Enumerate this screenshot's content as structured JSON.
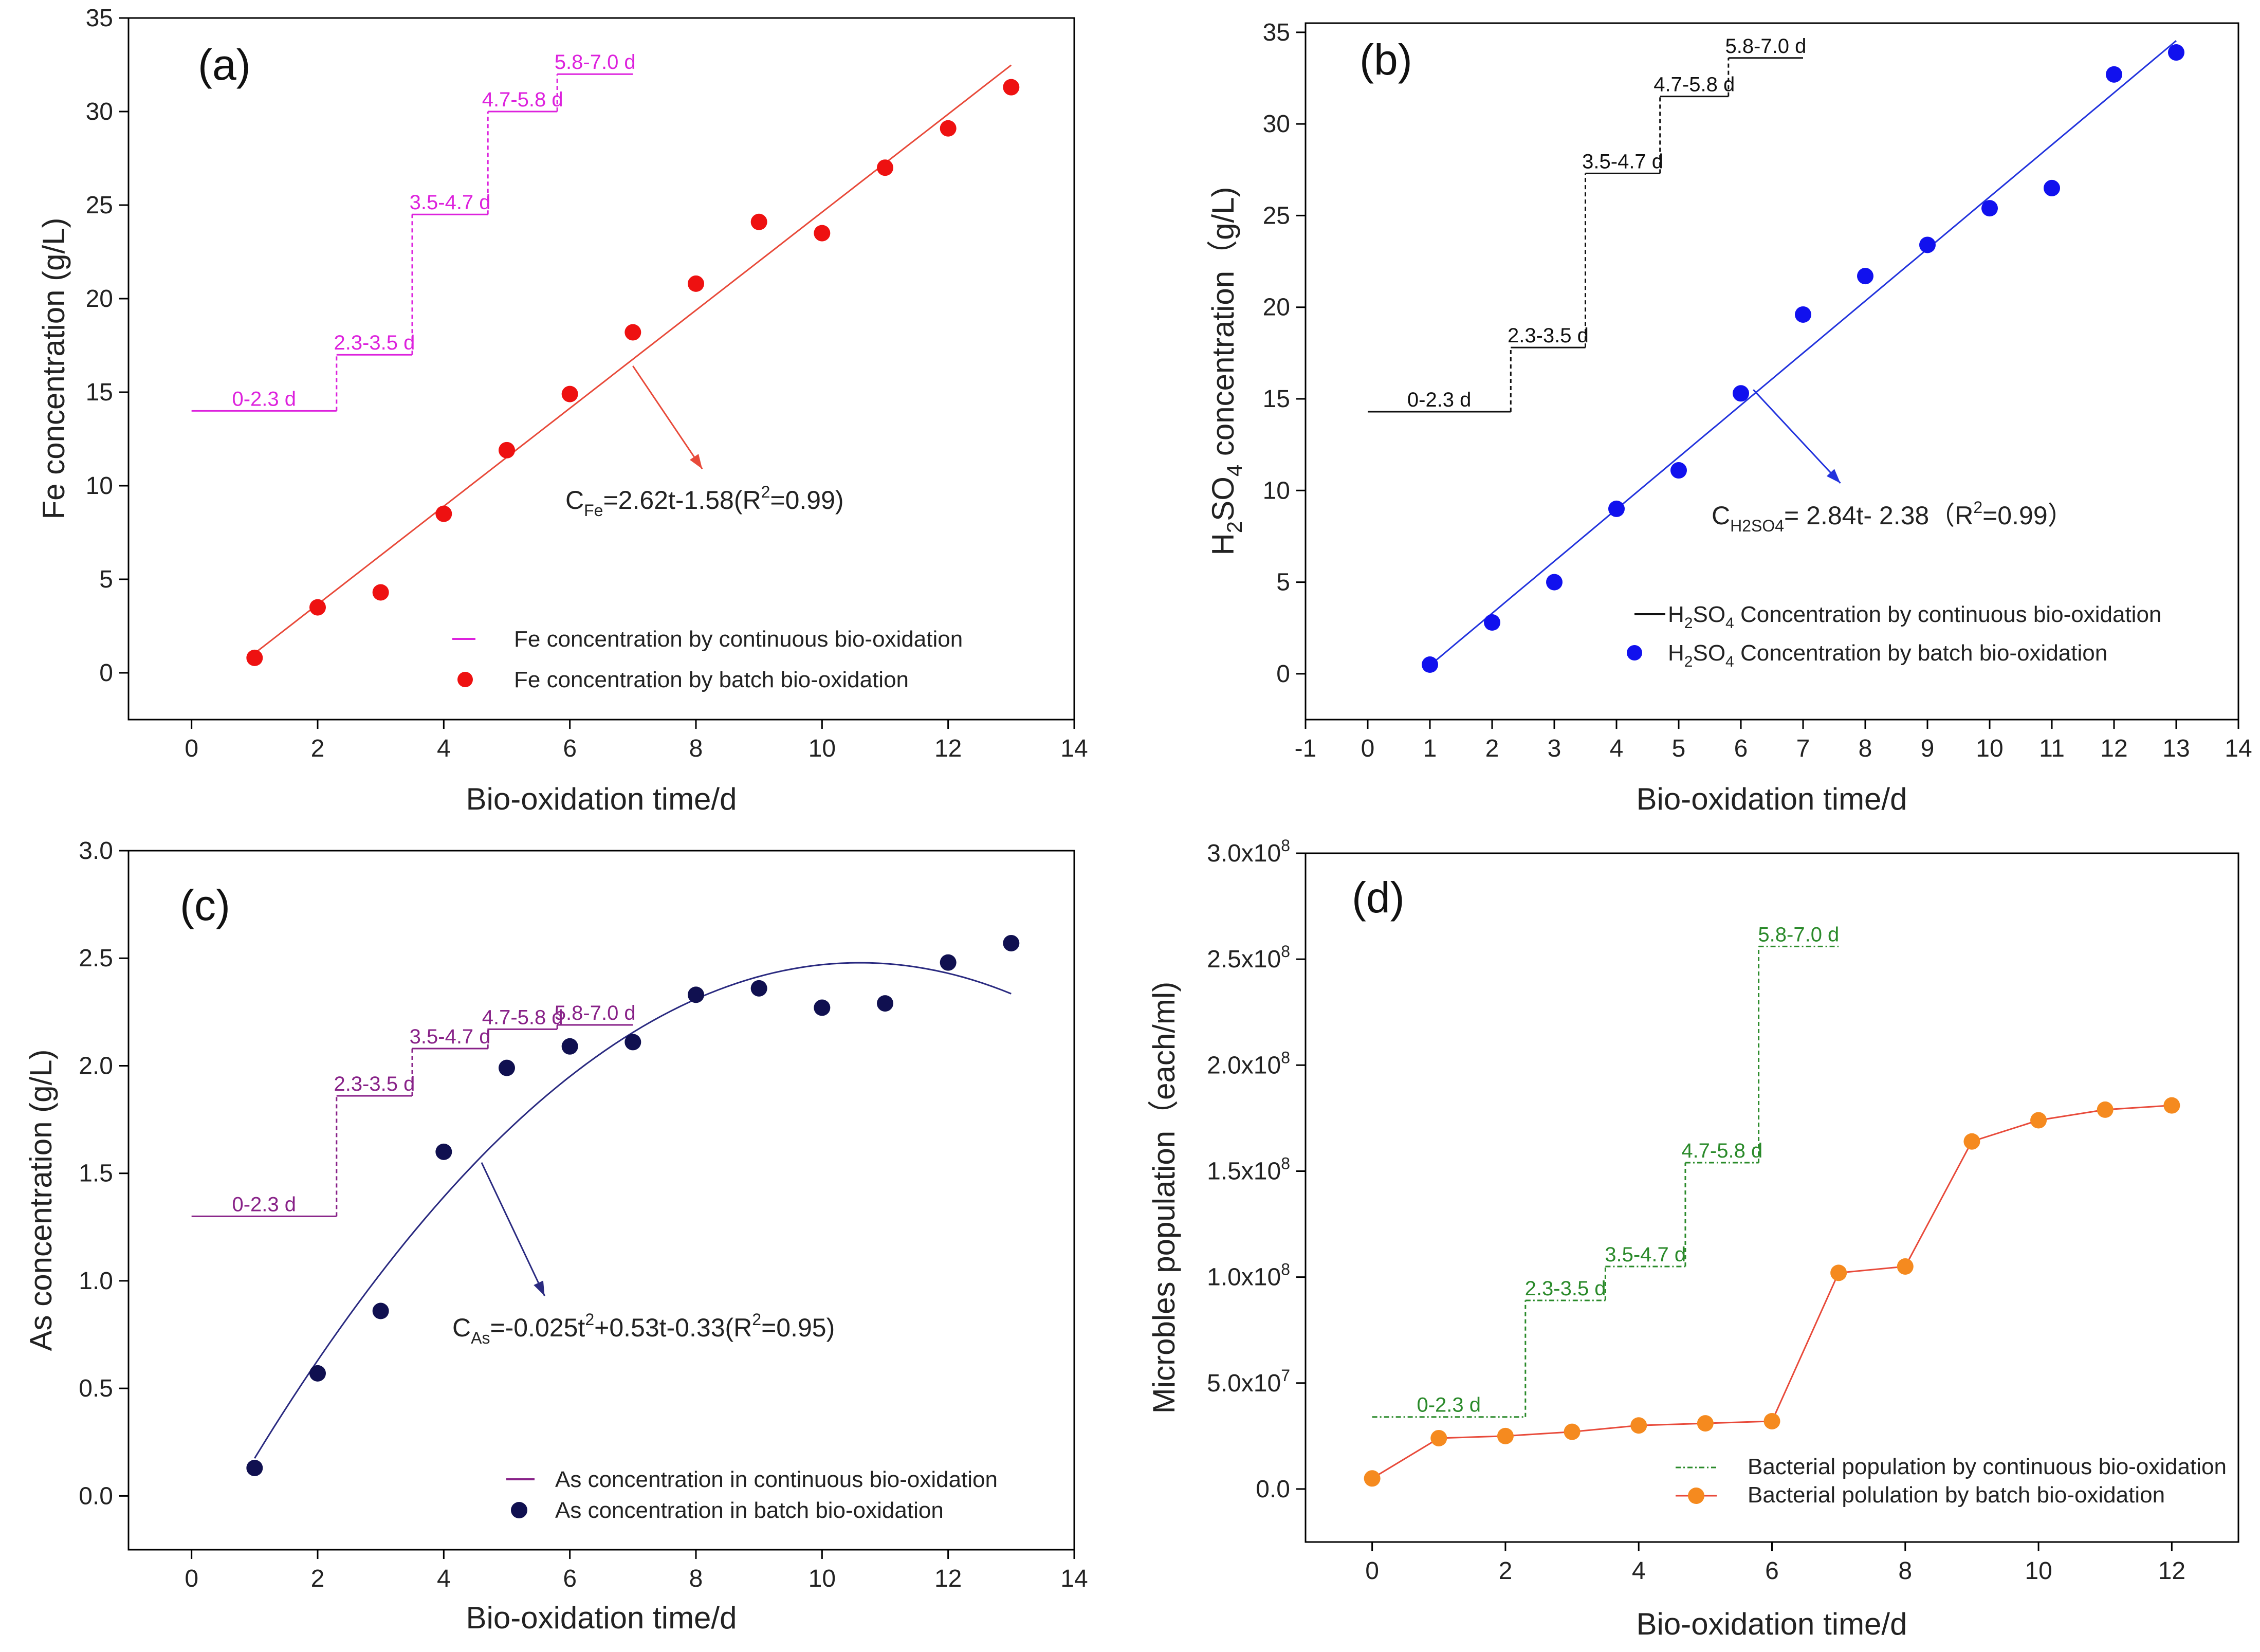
{
  "chart_data": [
    {
      "type": "scatter",
      "panel_label": "(a)",
      "xlabel": "Bio-oxidation time/d",
      "ylabel": "Fe concentration (g/L)",
      "xlim": [
        -1,
        14
      ],
      "ylim": [
        -2.5,
        35
      ],
      "xticks": [
        0,
        2,
        4,
        6,
        8,
        10,
        12,
        14
      ],
      "yticks": [
        0,
        5,
        10,
        15,
        20,
        25,
        30,
        35
      ],
      "colors": {
        "batch": "#ee1111",
        "fit": "#e84a3a",
        "continuous": "#dd22dd",
        "arrow": "#e84a3a"
      },
      "batch": {
        "name": "Fe concentration by batch bio-oxidation",
        "x": [
          1,
          2,
          3,
          4,
          5,
          6,
          7,
          8,
          9,
          10,
          11,
          12,
          13
        ],
        "y": [
          0.8,
          3.5,
          4.3,
          8.5,
          11.9,
          14.9,
          18.2,
          20.8,
          24.1,
          23.5,
          27.0,
          29.1,
          31.3
        ]
      },
      "fit": {
        "kind": "linear",
        "coef": [
          2.62,
          -1.58
        ],
        "x_range": [
          1,
          13
        ]
      },
      "equation": {
        "main": "C",
        "sub": "Fe",
        "rest": "=2.62t-1.58(R",
        "sup": "2",
        "tail": "=0.99)"
      },
      "continuous": {
        "name": "Fe concentration by continuous bio-oxidation",
        "steps": [
          {
            "label": "0-2.3 d",
            "x0": 0,
            "x1": 2.3,
            "y": 14.0
          },
          {
            "label": "2.3-3.5 d",
            "x0": 2.3,
            "x1": 3.5,
            "y": 17.0
          },
          {
            "label": "3.5-4.7 d",
            "x0": 3.5,
            "x1": 4.7,
            "y": 24.5
          },
          {
            "label": "4.7-5.8 d",
            "x0": 4.7,
            "x1": 5.8,
            "y": 30.0
          },
          {
            "label": "5.8-7.0 d",
            "x0": 5.8,
            "x1": 7.0,
            "y": 32.0
          }
        ]
      },
      "arrow": {
        "from": [
          7,
          16.4
        ],
        "to": [
          8.1,
          10.9
        ]
      }
    },
    {
      "type": "scatter",
      "panel_label": "(b)",
      "xlabel": "Bio-oxidation time/d",
      "ylabel": {
        "main": "H",
        "sub1": "2",
        "mid": "SO",
        "sub2": "4",
        "rest": " concentration（g/L)"
      },
      "xlim": [
        -1,
        14
      ],
      "ylim": [
        -2.5,
        35.5
      ],
      "xticks": [
        -1,
        0,
        1,
        2,
        3,
        4,
        5,
        6,
        7,
        8,
        9,
        10,
        11,
        12,
        13,
        14
      ],
      "yticks": [
        0,
        5,
        10,
        15,
        20,
        25,
        30,
        35
      ],
      "colors": {
        "batch": "#1111ee",
        "fit": "#2233dd",
        "continuous": "#111111",
        "arrow": "#2233dd"
      },
      "batch": {
        "name": "Concentration by batch bio-oxidation",
        "x": [
          1,
          2,
          3,
          4,
          5,
          6,
          7,
          8,
          9,
          10,
          11,
          12,
          13
        ],
        "y": [
          0.5,
          2.8,
          5.0,
          9.0,
          11.1,
          15.3,
          19.6,
          21.7,
          23.4,
          25.4,
          26.5,
          32.7,
          33.9
        ]
      },
      "fit": {
        "kind": "linear",
        "coef": [
          2.84,
          -2.38
        ],
        "x_range": [
          1,
          13
        ]
      },
      "equation": {
        "main": "C",
        "sub": "H2SO4",
        "rest": "= 2.84t- 2.38（R",
        "sup": "2",
        "tail": "=0.99）"
      },
      "legend_prefix": {
        "main": "H",
        "sub1": "2",
        "mid": "SO",
        "sub2": "4"
      },
      "continuous": {
        "name": "Concentration by continuous bio-oxidation",
        "steps": [
          {
            "label": "0-2.3 d",
            "x0": 0,
            "x1": 2.3,
            "y": 14.3
          },
          {
            "label": "2.3-3.5 d",
            "x0": 2.3,
            "x1": 3.5,
            "y": 17.8
          },
          {
            "label": "3.5-4.7 d",
            "x0": 3.5,
            "x1": 4.7,
            "y": 27.3
          },
          {
            "label": "4.7-5.8 d",
            "x0": 4.7,
            "x1": 5.8,
            "y": 31.5
          },
          {
            "label": "5.8-7.0 d",
            "x0": 5.8,
            "x1": 7.0,
            "y": 33.6
          }
        ]
      },
      "arrow": {
        "from": [
          6.2,
          15.5
        ],
        "to": [
          7.6,
          10.4
        ]
      }
    },
    {
      "type": "scatter",
      "panel_label": "(c)",
      "xlabel": "Bio-oxidation time/d",
      "ylabel": "As concentration (g/L)",
      "xlim": [
        -1,
        14
      ],
      "ylim": [
        -0.25,
        3.0
      ],
      "xticks": [
        0,
        2,
        4,
        6,
        8,
        10,
        12,
        14
      ],
      "yticks": [
        0.0,
        0.5,
        1.0,
        1.5,
        2.0,
        2.5,
        3.0
      ],
      "colors": {
        "batch": "#101050",
        "fit": "#2a2a80",
        "continuous": "#882288",
        "arrow": "#2a2a80"
      },
      "batch": {
        "name": "As concentration in batch bio-oxidation",
        "x": [
          1,
          2,
          3,
          4,
          5,
          6,
          7,
          8,
          9,
          10,
          11,
          12,
          13
        ],
        "y": [
          0.13,
          0.57,
          0.86,
          1.6,
          1.99,
          2.09,
          2.11,
          2.33,
          2.36,
          2.27,
          2.29,
          2.48,
          2.57
        ]
      },
      "fit": {
        "kind": "quadratic",
        "coef": [
          -0.025,
          0.53,
          -0.33
        ],
        "x_range": [
          1,
          13
        ]
      },
      "equation": {
        "main": "C",
        "sub": "As",
        "rest": "=-0.025t",
        "sup": "2",
        "mid": "+0.53t-0.33(R",
        "sup2": "2",
        "tail": "=0.95)"
      },
      "continuous": {
        "name": "As concentration in continuous bio-oxidation",
        "steps": [
          {
            "label": "0-2.3 d",
            "x0": 0,
            "x1": 2.3,
            "y": 1.3
          },
          {
            "label": "2.3-3.5 d",
            "x0": 2.3,
            "x1": 3.5,
            "y": 1.86
          },
          {
            "label": "3.5-4.7 d",
            "x0": 3.5,
            "x1": 4.7,
            "y": 2.08
          },
          {
            "label": "4.7-5.8 d",
            "x0": 4.7,
            "x1": 5.8,
            "y": 2.17
          },
          {
            "label": "5.8-7.0 d",
            "x0": 5.8,
            "x1": 7.0,
            "y": 2.19
          }
        ]
      },
      "arrow": {
        "from": [
          4.6,
          1.55
        ],
        "to": [
          5.6,
          0.93
        ]
      }
    },
    {
      "type": "line",
      "panel_label": "(d)",
      "xlabel": "Bio-oxidation time/d",
      "ylabel": "Microbles population（each/ml)",
      "xlim": [
        -1,
        13
      ],
      "ylim": [
        -25000000.0,
        300000000.0
      ],
      "xticks": [
        0,
        2,
        4,
        6,
        8,
        10,
        12
      ],
      "yticks": [
        0,
        50000000.0,
        100000000.0,
        150000000.0,
        200000000.0,
        250000000.0,
        300000000.0
      ],
      "ytick_labels": [
        {
          "base": "0.0",
          "exp": ""
        },
        {
          "base": "5.0x10",
          "exp": "7"
        },
        {
          "base": "1.0x10",
          "exp": "8"
        },
        {
          "base": "1.5x10",
          "exp": "8"
        },
        {
          "base": "2.0x10",
          "exp": "8"
        },
        {
          "base": "2.5x10",
          "exp": "8"
        },
        {
          "base": "3.0x10",
          "exp": "8"
        }
      ],
      "colors": {
        "batch": "#f58a1f",
        "line": "#e84a3a",
        "continuous": "#2a8a2a"
      },
      "batch": {
        "name": "Bacterial polulation by batch bio-oxidation",
        "x": [
          0,
          1,
          2,
          3,
          4,
          5,
          6,
          7,
          8,
          9,
          10,
          11,
          12
        ],
        "y": [
          5000000.0,
          24000000.0,
          25000000.0,
          27000000.0,
          30000000.0,
          31000000.0,
          32000000.0,
          102000000.0,
          105000000.0,
          164000000.0,
          174000000.0,
          179000000.0,
          181000000.0
        ]
      },
      "continuous": {
        "name": "Bacterial population by continuous bio-oxidation",
        "steps": [
          {
            "label": "0-2.3 d",
            "x0": 0,
            "x1": 2.3,
            "y": 34000000.0
          },
          {
            "label": "2.3-3.5 d",
            "x0": 2.3,
            "x1": 3.5,
            "y": 89000000.0
          },
          {
            "label": "3.5-4.7 d",
            "x0": 3.5,
            "x1": 4.7,
            "y": 105000000.0
          },
          {
            "label": "4.7-5.8 d",
            "x0": 4.7,
            "x1": 5.8,
            "y": 154000000.0
          },
          {
            "label": "5.8-7.0 d",
            "x0": 5.8,
            "x1": 7.0,
            "y": 256000000.0
          }
        ]
      }
    }
  ]
}
